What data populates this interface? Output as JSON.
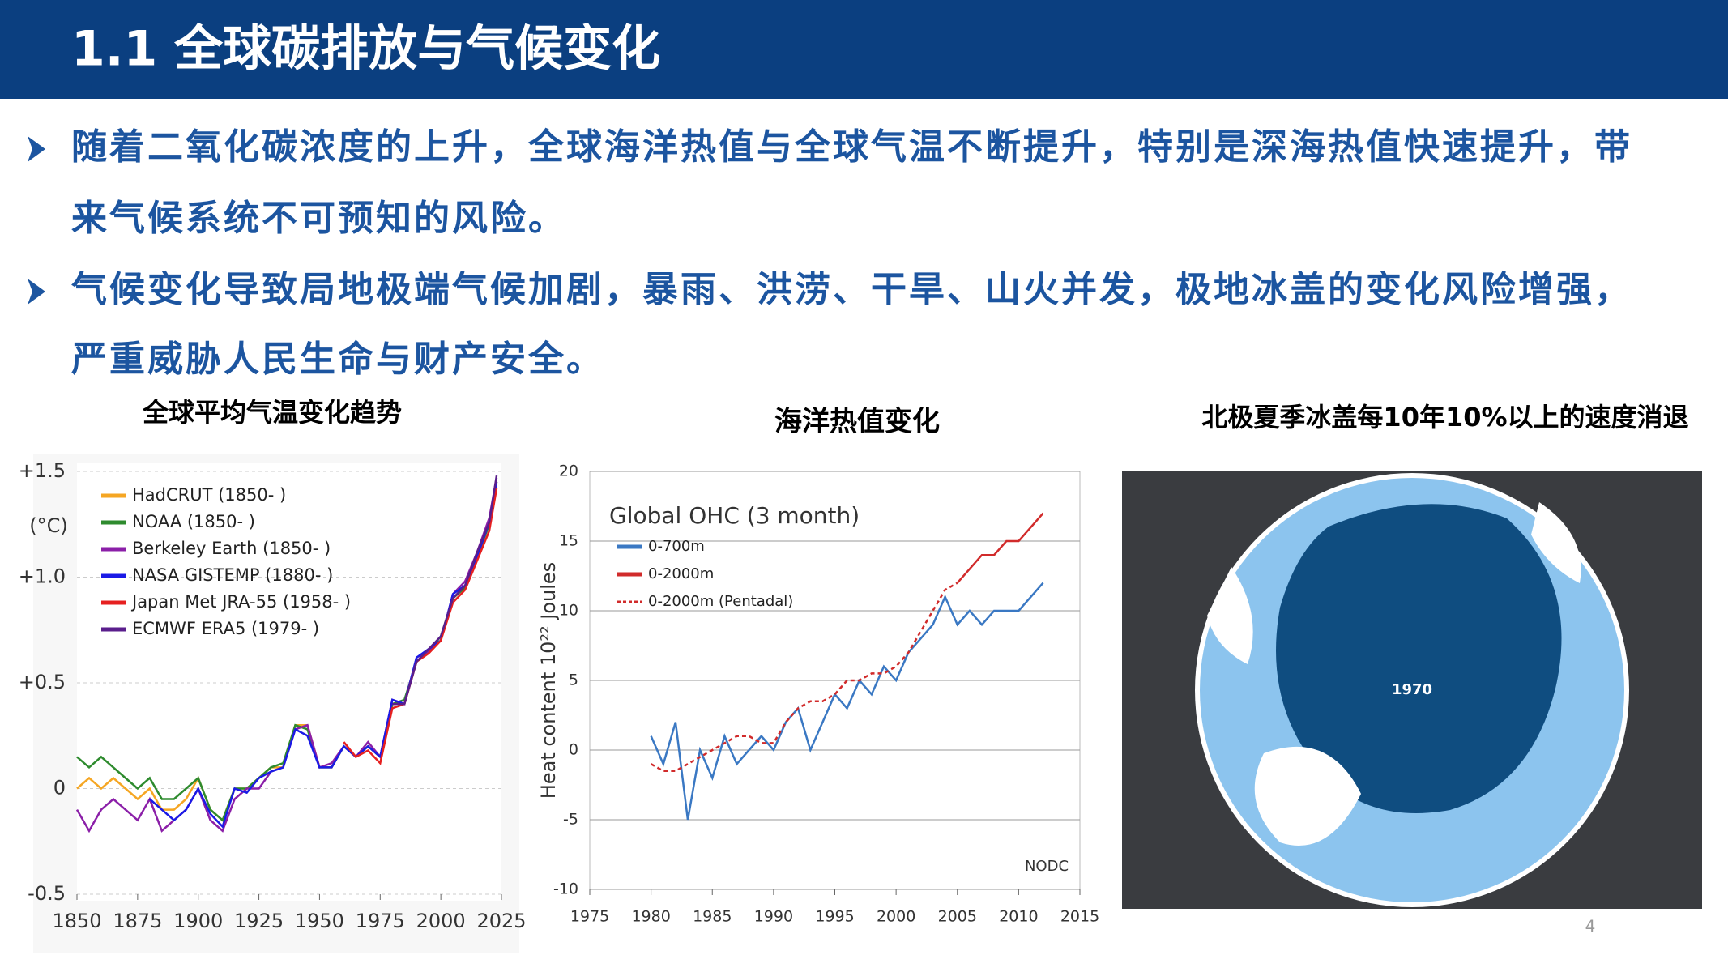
{
  "header": {
    "title": "1.1 全球碳排放与气候变化"
  },
  "bullets": [
    [
      "随着二氧化碳浓度的上升，全球海洋热值与全球气温不断提升，特别是深海热值快速提升，带",
      "来气候系统不可预知的风险。"
    ],
    [
      "气候变化导致局地极端气候加剧，暴雨、洪涝、干旱、山火并发，极地冰盖的变化风险增强，",
      "严重威胁人民生命与财产安全。"
    ]
  ],
  "chart_data": [
    {
      "type": "line",
      "title": "全球平均气温变化趋势",
      "y_label": "(°C)",
      "grid": true,
      "x": [
        1850,
        1855,
        1860,
        1865,
        1870,
        1875,
        1880,
        1885,
        1890,
        1895,
        1900,
        1905,
        1910,
        1915,
        1920,
        1925,
        1930,
        1935,
        1940,
        1945,
        1950,
        1955,
        1960,
        1965,
        1970,
        1975,
        1980,
        1985,
        1990,
        1995,
        2000,
        2005,
        2010,
        2015,
        2020,
        2023
      ],
      "xlim": [
        1850,
        2025
      ],
      "xticks": [
        1850,
        1875,
        1900,
        1925,
        1950,
        1975,
        2000,
        2025
      ],
      "ylim": [
        -0.5,
        1.5
      ],
      "yticks": [
        {
          "value": -0.5,
          "label": "-0.5"
        },
        0,
        {
          "value": 0.5,
          "label": "+0.5"
        },
        {
          "value": 1.0,
          "label": "+1.0"
        },
        {
          "value": 1.5,
          "label": "+1.5"
        }
      ],
      "series": [
        {
          "name": "HadCRUT (1850- )",
          "color": "#f5a623",
          "values": [
            0.0,
            0.05,
            0.0,
            0.05,
            0.0,
            -0.05,
            0.0,
            -0.1,
            -0.1,
            -0.05,
            0.05,
            -0.1,
            -0.15,
            0.0,
            0.0,
            0.05,
            0.1,
            0.1,
            0.3,
            0.3,
            0.1,
            0.1,
            0.2,
            0.15,
            0.2,
            0.15,
            0.4,
            0.4,
            0.6,
            0.65,
            0.7,
            0.9,
            0.95,
            1.1,
            1.25,
            1.45
          ]
        },
        {
          "name": "NOAA (1850- )",
          "color": "#2e8b2e",
          "values": [
            0.15,
            0.1,
            0.15,
            0.1,
            0.05,
            0.0,
            0.05,
            -0.05,
            -0.05,
            0.0,
            0.05,
            -0.1,
            -0.15,
            0.0,
            0.0,
            0.05,
            0.1,
            0.12,
            0.3,
            0.28,
            0.1,
            0.1,
            0.2,
            0.15,
            0.2,
            0.15,
            0.4,
            0.42,
            0.6,
            0.65,
            0.72,
            0.9,
            0.95,
            1.1,
            1.25,
            1.45
          ]
        },
        {
          "name": "Berkeley Earth (1850- )",
          "color": "#8b1fa8",
          "values": [
            -0.1,
            -0.2,
            -0.1,
            -0.05,
            -0.1,
            -0.15,
            -0.05,
            -0.2,
            -0.15,
            -0.1,
            0.0,
            -0.15,
            -0.2,
            -0.05,
            0.0,
            0.0,
            0.08,
            0.1,
            0.28,
            0.3,
            0.1,
            0.12,
            0.2,
            0.15,
            0.22,
            0.15,
            0.42,
            0.4,
            0.62,
            0.65,
            0.7,
            0.92,
            0.98,
            1.12,
            1.28,
            1.47
          ]
        },
        {
          "name": "NASA GISTEMP (1880- )",
          "color": "#1a1ae6",
          "values": [
            null,
            null,
            null,
            null,
            null,
            null,
            -0.05,
            -0.1,
            -0.15,
            -0.1,
            0.0,
            -0.12,
            -0.18,
            0.0,
            -0.02,
            0.05,
            0.08,
            0.1,
            0.28,
            0.25,
            0.1,
            0.1,
            0.2,
            0.15,
            0.2,
            0.15,
            0.42,
            0.4,
            0.62,
            0.66,
            0.7,
            0.92,
            0.96,
            1.1,
            1.26,
            1.45
          ]
        },
        {
          "name": "Japan Met JRA-55 (1958- )",
          "color": "#e62020",
          "values": [
            null,
            null,
            null,
            null,
            null,
            null,
            null,
            null,
            null,
            null,
            null,
            null,
            null,
            null,
            null,
            null,
            null,
            null,
            null,
            null,
            null,
            null,
            0.22,
            0.15,
            0.18,
            0.12,
            0.38,
            0.4,
            0.6,
            0.64,
            0.7,
            0.88,
            0.94,
            1.08,
            1.22,
            1.42
          ]
        },
        {
          "name": "ECMWF ERA5 (1979- )",
          "color": "#5a1e8c",
          "values": [
            null,
            null,
            null,
            null,
            null,
            null,
            null,
            null,
            null,
            null,
            null,
            null,
            null,
            null,
            null,
            null,
            null,
            null,
            null,
            null,
            null,
            null,
            null,
            null,
            null,
            null,
            0.4,
            0.4,
            0.6,
            0.66,
            0.72,
            0.9,
            0.96,
            1.12,
            1.26,
            1.48
          ]
        }
      ]
    },
    {
      "type": "line",
      "title": "海洋热值变化",
      "inner_title": "Global OHC (3 month)",
      "y_label": "Heat content 10²² Joules",
      "note": "NODC",
      "grid": true,
      "x": [
        1980,
        1981,
        1982,
        1983,
        1984,
        1985,
        1986,
        1987,
        1988,
        1989,
        1990,
        1991,
        1992,
        1993,
        1994,
        1995,
        1996,
        1997,
        1998,
        1999,
        2000,
        2001,
        2002,
        2003,
        2004,
        2005,
        2006,
        2007,
        2008,
        2009,
        2010,
        2011,
        2012
      ],
      "xlim": [
        1975,
        2015
      ],
      "xticks": [
        1975,
        1980,
        1985,
        1990,
        1995,
        2000,
        2005,
        2010,
        2015
      ],
      "ylim": [
        -10,
        20
      ],
      "yticks": [
        -10,
        -5,
        0,
        5,
        10,
        15,
        20
      ],
      "series": [
        {
          "name": "0-700m",
          "color": "#3a78c3",
          "values": [
            1,
            -1,
            2,
            -5,
            0,
            -2,
            1,
            -1,
            0,
            1,
            0,
            2,
            3,
            0,
            2,
            4,
            3,
            5,
            4,
            6,
            5,
            7,
            8,
            9,
            11,
            9,
            10,
            9,
            10,
            10,
            10,
            11,
            12
          ]
        },
        {
          "name": "0-2000m",
          "color": "#d12b2b",
          "values": [
            null,
            null,
            null,
            null,
            null,
            null,
            null,
            null,
            null,
            null,
            null,
            null,
            null,
            null,
            null,
            null,
            null,
            null,
            null,
            null,
            null,
            null,
            null,
            null,
            null,
            12,
            13,
            14,
            14,
            15,
            15,
            16,
            17
          ]
        },
        {
          "name": "0-2000m (Pentadal)",
          "color": "#d12b2b",
          "dash": true,
          "values": [
            -1,
            -1.5,
            -1.5,
            -1,
            -0.5,
            0,
            0.5,
            1,
            1,
            0.5,
            0.5,
            2,
            3,
            3.5,
            3.5,
            4,
            5,
            5,
            5.5,
            5.5,
            6,
            7,
            8.5,
            10,
            11.5,
            12,
            null,
            null,
            null,
            null,
            null,
            null,
            null
          ]
        }
      ]
    }
  ],
  "map": {
    "title": "北极夏季冰盖每10年10%以上的速度消退",
    "label": "1970"
  },
  "page_number": "4"
}
